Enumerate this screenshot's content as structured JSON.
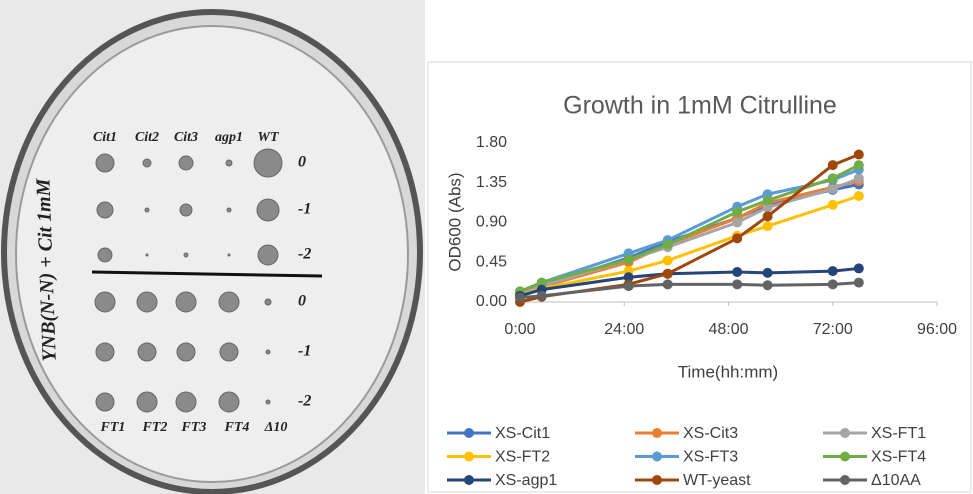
{
  "plate": {
    "side_label": "YNB(N-N) + Cit 1mM",
    "top_columns": [
      "Cit1",
      "Cit2",
      "Cit3",
      "agp1",
      "WT"
    ],
    "bottom_columns": [
      "FT1",
      "FT2",
      "FT3",
      "FT4",
      "Δ10"
    ],
    "dilutions": [
      "0",
      "-1",
      "-2",
      "0",
      "-1",
      "-2"
    ]
  },
  "chart_data": {
    "type": "line",
    "title": "Growth in 1mM Citrulline",
    "x_label": "Time(hh:mm)",
    "y_label": "OD600 (Abs)",
    "x": [
      0,
      5,
      25,
      34,
      50,
      57,
      72,
      78
    ],
    "xlim": [
      0,
      96
    ],
    "xticks": [
      {
        "value": 0,
        "label": "0:00"
      },
      {
        "value": 24,
        "label": "24:00"
      },
      {
        "value": 48,
        "label": "48:00"
      },
      {
        "value": 72,
        "label": "72:00"
      },
      {
        "value": 96,
        "label": "96:00"
      }
    ],
    "ylim": [
      0,
      1.8
    ],
    "yticks": [
      {
        "value": 0,
        "label": "0.00"
      },
      {
        "value": 0.45,
        "label": "0.45"
      },
      {
        "value": 0.9,
        "label": "0.90"
      },
      {
        "value": 1.35,
        "label": "1.35"
      },
      {
        "value": 1.8,
        "label": "1.80"
      }
    ],
    "grid": false,
    "legend": "bottom",
    "series": [
      {
        "name": "XS-Cit1",
        "color": "#4472c4",
        "values": [
          0.1,
          0.18,
          0.5,
          0.68,
          0.95,
          1.1,
          1.27,
          1.33
        ]
      },
      {
        "name": "XS-Cit3",
        "color": "#ed7d31",
        "values": [
          0.08,
          0.17,
          0.45,
          0.65,
          0.95,
          1.12,
          1.3,
          1.37
        ]
      },
      {
        "name": "XS-FT1",
        "color": "#a5a5a5",
        "values": [
          0.1,
          0.18,
          0.48,
          0.62,
          0.9,
          1.07,
          1.28,
          1.4
        ]
      },
      {
        "name": "XS-FT2",
        "color": "#ffc000",
        "values": [
          0.08,
          0.15,
          0.35,
          0.47,
          0.75,
          0.86,
          1.1,
          1.2
        ]
      },
      {
        "name": "XS-FT3",
        "color": "#5b9bd5",
        "values": [
          0.12,
          0.22,
          0.55,
          0.7,
          1.08,
          1.22,
          1.38,
          1.5
        ]
      },
      {
        "name": "XS-FT4",
        "color": "#70ad47",
        "values": [
          0.12,
          0.22,
          0.48,
          0.65,
          1.02,
          1.15,
          1.4,
          1.55
        ]
      },
      {
        "name": "XS-agp1",
        "color": "#264478",
        "values": [
          0.07,
          0.14,
          0.28,
          0.32,
          0.34,
          0.33,
          0.35,
          0.38
        ]
      },
      {
        "name": "WT-yeast",
        "color": "#9e480e",
        "values": [
          0.0,
          0.06,
          0.2,
          0.32,
          0.72,
          0.97,
          1.55,
          1.67
        ]
      },
      {
        "name": "Δ10AA",
        "color": "#636363",
        "values": [
          0.05,
          0.07,
          0.18,
          0.2,
          0.2,
          0.19,
          0.2,
          0.22
        ]
      }
    ]
  }
}
